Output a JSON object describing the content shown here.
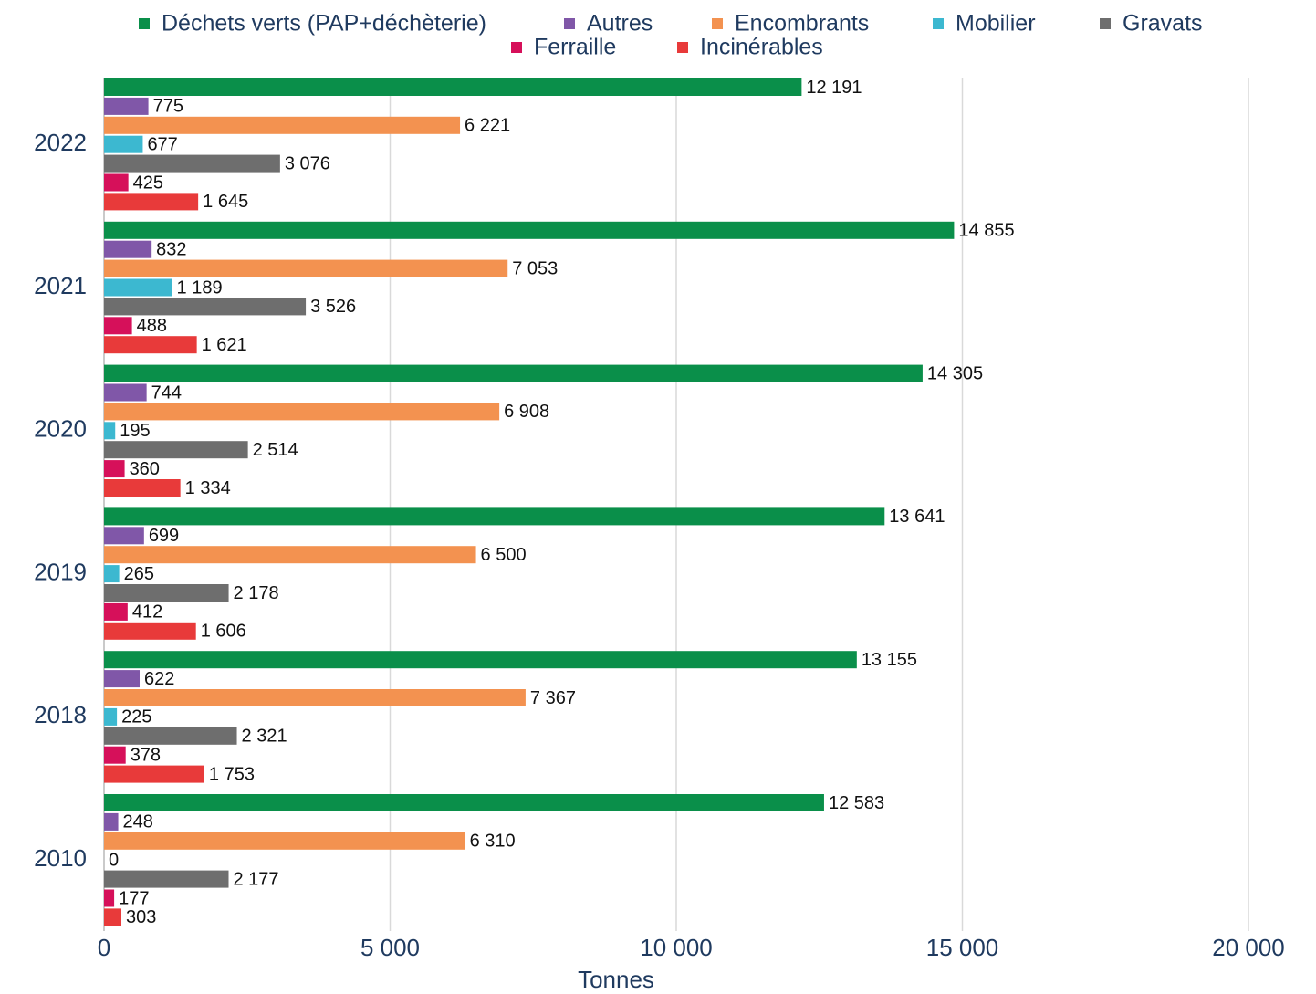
{
  "chart_data": {
    "type": "hbar",
    "categories": [
      "2022",
      "2021",
      "2020",
      "2019",
      "2018",
      "2010"
    ],
    "series": [
      {
        "name": "Déchets verts (PAP+déchèterie)",
        "color": "#0a8f4a",
        "values": [
          12191,
          14855,
          14305,
          13641,
          13155,
          12583
        ],
        "value_labels": [
          "12 191",
          "14 855",
          "14 305",
          "13 641",
          "13 155",
          "12 583"
        ]
      },
      {
        "name": "Autres",
        "color": "#8057a8",
        "values": [
          775,
          832,
          744,
          699,
          622,
          248
        ],
        "value_labels": [
          "775",
          "832",
          "744",
          "699",
          "622",
          "248"
        ]
      },
      {
        "name": "Encombrants",
        "color": "#f39250",
        "values": [
          6221,
          7053,
          6908,
          6500,
          7367,
          6310
        ],
        "value_labels": [
          "6 221",
          "7 053",
          "6 908",
          "6 500",
          "7 367",
          "6 310"
        ]
      },
      {
        "name": "Mobilier",
        "color": "#3cb8d0",
        "values": [
          677,
          1189,
          195,
          265,
          225,
          0
        ],
        "value_labels": [
          "677",
          "1 189",
          "195",
          "265",
          "225",
          "0"
        ]
      },
      {
        "name": "Gravats",
        "color": "#6e6e6e",
        "values": [
          3076,
          3526,
          2514,
          2178,
          2321,
          2177
        ],
        "value_labels": [
          "3 076",
          "3 526",
          "2 514",
          "2 178",
          "2 321",
          "2 177"
        ]
      },
      {
        "name": "Ferraille",
        "color": "#d6105a",
        "values": [
          425,
          488,
          360,
          412,
          378,
          177
        ],
        "value_labels": [
          "425",
          "488",
          "360",
          "412",
          "378",
          "177"
        ]
      },
      {
        "name": "Incinérables",
        "color": "#e83a3a",
        "values": [
          1645,
          1621,
          1334,
          1606,
          1753,
          303
        ],
        "value_labels": [
          "1 645",
          "1 621",
          "1 334",
          "1 606",
          "1 753",
          "303"
        ]
      }
    ],
    "xlabel": "Tonnes",
    "xlim": [
      0,
      20000
    ],
    "xticks": [
      0,
      {
        "value": 5000,
        "label": "5 000"
      },
      {
        "value": 10000,
        "label": "10 000"
      },
      {
        "value": 15000,
        "label": "15 000"
      },
      {
        "value": 20000,
        "label": "20 000"
      }
    ],
    "grid": true
  }
}
